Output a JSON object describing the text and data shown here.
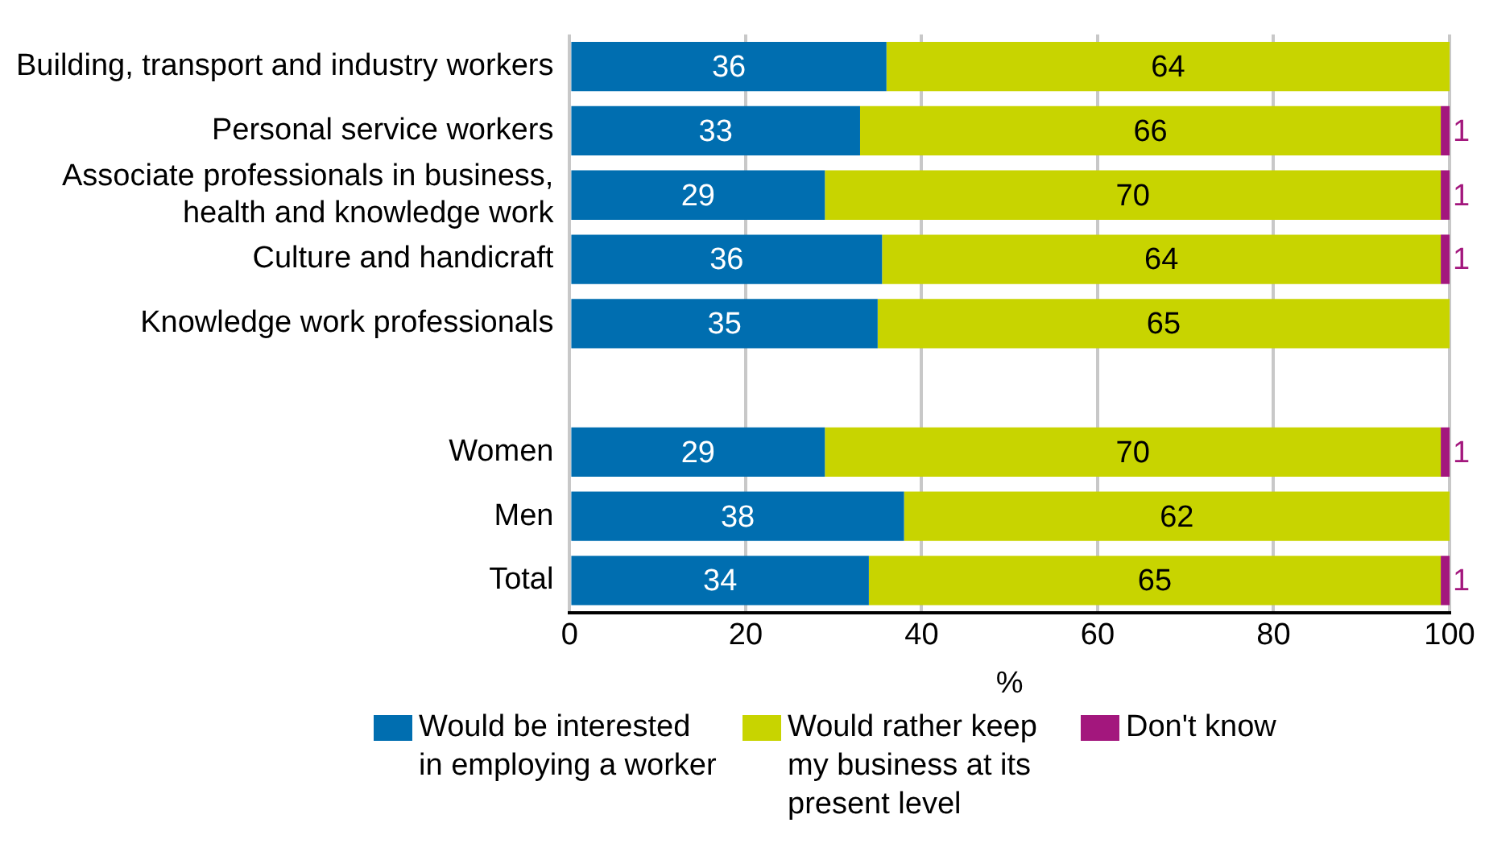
{
  "chart_data": {
    "type": "bar",
    "orientation": "horizontal",
    "stacked": true,
    "xlabel": "%",
    "categories": [
      "Building, transport and industry workers",
      "Personal service workers",
      "Associate professionals in business, health and knowledge work",
      "Culture and handicraft",
      "Knowledge work professionals",
      null,
      "Women",
      "Men",
      "Total"
    ],
    "series": [
      {
        "name": "Would be interested in employing a worker",
        "color": "#006eb0",
        "values": [
          36,
          33,
          29,
          35.5,
          35,
          null,
          29,
          38,
          34
        ],
        "value_labels": [
          "36",
          "33",
          "29",
          "36",
          "35",
          null,
          "29",
          "38",
          "34"
        ]
      },
      {
        "name": "Would rather keep my business at its present level",
        "color": "#c8d400",
        "values": [
          64,
          66,
          70,
          63.5,
          65,
          null,
          70,
          62,
          65
        ],
        "value_labels": [
          "64",
          "66",
          "70",
          "64",
          "65",
          null,
          "70",
          "62",
          "65"
        ]
      },
      {
        "name": "Don't know",
        "color": "#a3177d",
        "values": [
          null,
          1,
          1,
          1,
          null,
          null,
          1,
          null,
          1
        ],
        "value_labels": [
          null,
          "1",
          "1",
          "1",
          null,
          null,
          "1",
          null,
          "1"
        ]
      }
    ],
    "xlim": [
      0,
      100
    ],
    "xticks": [
      0,
      20,
      40,
      60,
      80,
      100
    ],
    "grid": "x",
    "legend": "bottom"
  }
}
